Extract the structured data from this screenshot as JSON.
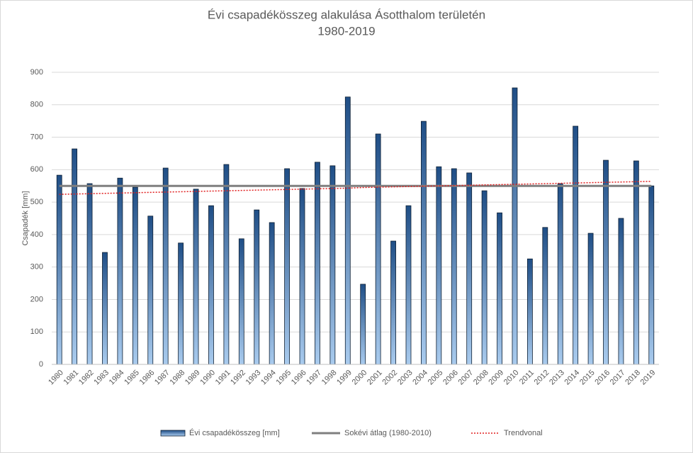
{
  "chart_data": {
    "type": "bar",
    "title": "Évi csapadékösszeg alakulása Ásotthalom területén",
    "subtitle": "1980-2019",
    "y_label": "Csapadék [mm]",
    "categories": [
      "1980",
      "1981",
      "1982",
      "1983",
      "1984",
      "1985",
      "1986",
      "1987",
      "1988",
      "1989",
      "1990",
      "1991",
      "1992",
      "1993",
      "1994",
      "1995",
      "1996",
      "1997",
      "1998",
      "1999",
      "2000",
      "2001",
      "2002",
      "2003",
      "2004",
      "2005",
      "2006",
      "2007",
      "2008",
      "2009",
      "2010",
      "2011",
      "2012",
      "2013",
      "2014",
      "2015",
      "2016",
      "2017",
      "2018",
      "2019"
    ],
    "series": [
      {
        "name": "Évi csapadékösszeg [mm]",
        "type": "bar",
        "color": "#2e6aa6",
        "values": [
          583,
          664,
          557,
          345,
          574,
          546,
          457,
          605,
          374,
          540,
          489,
          616,
          387,
          476,
          437,
          603,
          542,
          623,
          612,
          824,
          247,
          710,
          380,
          489,
          749,
          609,
          603,
          590,
          535,
          467,
          852,
          325,
          422,
          557,
          734,
          404,
          629,
          450,
          627,
          550
        ]
      },
      {
        "name": "Sokévi átlag (1980-2010)",
        "type": "line",
        "color": "#7f7f7f",
        "values": [
          550,
          550,
          550,
          550,
          550,
          550,
          550,
          550,
          550,
          550,
          550,
          550,
          550,
          550,
          550,
          550,
          550,
          550,
          550,
          550,
          550,
          550,
          550,
          550,
          550,
          550,
          550,
          550,
          550,
          550,
          550,
          550,
          550,
          550,
          550,
          550,
          550,
          550,
          550,
          550
        ]
      },
      {
        "name": "Trendvonal",
        "type": "dotted",
        "color": "#e02020",
        "values": [
          524,
          525,
          526,
          527,
          528,
          529,
          530,
          531,
          532,
          533,
          534,
          535,
          536,
          537,
          538,
          539,
          540,
          541,
          542,
          543,
          545,
          546,
          547,
          548,
          549,
          550,
          551,
          552,
          553,
          554,
          555,
          556,
          557,
          558,
          559,
          560,
          561,
          562,
          563,
          564
        ]
      }
    ],
    "ylim": [
      0,
      900
    ],
    "yticks": [
      0,
      100,
      200,
      300,
      400,
      500,
      600,
      700,
      800,
      900
    ],
    "grid": true,
    "legend": "bottom"
  }
}
